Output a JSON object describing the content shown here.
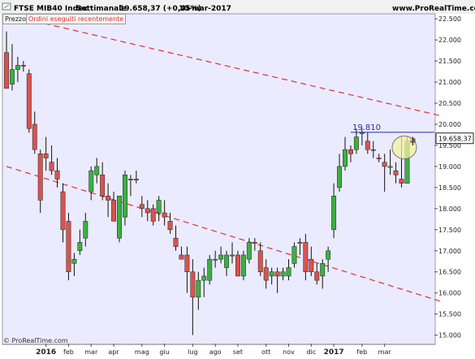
{
  "header": {
    "symbol": "FTSE MIB40 Index",
    "timeframe": "Settimanale",
    "last_change": "19.658,37 (+0,45%)",
    "date": "10-mar-2017",
    "site": "www.ProRealTime.com"
  },
  "tabs": {
    "price": "Prezzo",
    "orders": "Ordini eseguiti recentemente"
  },
  "copyright": "© ProRealTime.com",
  "annotation": {
    "level_label": "19.810",
    "last_price_label": "19.658,37"
  },
  "colors": {
    "up": "#3cb043",
    "down": "#d9534f",
    "trend": "#e0303a",
    "level": "#1f2fa8",
    "plot_bg": "#ebebff",
    "highlight": "#f5f0a0"
  },
  "chart_data": {
    "type": "candlestick",
    "title": "FTSE MIB40 Index",
    "ylim": [
      14800,
      22600
    ],
    "y_ticks": [
      "22.500",
      "22.000",
      "21.500",
      "21.000",
      "20.500",
      "20.000",
      "19.500",
      "19.000",
      "18.500",
      "18.000",
      "17.500",
      "17.000",
      "16.500",
      "16.000",
      "15.500",
      "15.000"
    ],
    "x_labels": [
      {
        "label": "2016",
        "week": 7,
        "year": true
      },
      {
        "label": "feb",
        "week": 11
      },
      {
        "label": "mar",
        "week": 15
      },
      {
        "label": "apr",
        "week": 19
      },
      {
        "label": "mag",
        "week": 24
      },
      {
        "label": "giu",
        "week": 28
      },
      {
        "label": "lug",
        "week": 33
      },
      {
        "label": "ago",
        "week": 37
      },
      {
        "label": "set",
        "week": 41
      },
      {
        "label": "ott",
        "week": 46
      },
      {
        "label": "nov",
        "week": 50
      },
      {
        "label": "dic",
        "week": 54
      },
      {
        "label": "2017",
        "week": 58,
        "year": true
      },
      {
        "label": "feb",
        "week": 63
      },
      {
        "label": "mar",
        "week": 67
      }
    ],
    "candles": [
      [
        21700,
        22200,
        20900,
        20850,
        "down"
      ],
      [
        20950,
        21900,
        20800,
        21300,
        "up"
      ],
      [
        21300,
        21600,
        21000,
        21400,
        "up"
      ],
      [
        21400,
        21500,
        21250,
        21400,
        "down"
      ],
      [
        21200,
        21300,
        19800,
        19900,
        "down"
      ],
      [
        20000,
        20300,
        19300,
        19400,
        "down"
      ],
      [
        19300,
        19400,
        17900,
        18200,
        "down"
      ],
      [
        19300,
        19700,
        18900,
        19200,
        "down"
      ],
      [
        19100,
        19500,
        18800,
        18900,
        "down"
      ],
      [
        18900,
        19200,
        18500,
        18700,
        "down"
      ],
      [
        18400,
        18600,
        17200,
        17500,
        "down"
      ],
      [
        17700,
        17900,
        16300,
        16500,
        "down"
      ],
      [
        16700,
        16950,
        16400,
        16800,
        "up"
      ],
      [
        17000,
        17500,
        16900,
        17200,
        "up"
      ],
      [
        17300,
        17900,
        17100,
        17700,
        "up"
      ],
      [
        18400,
        19000,
        18200,
        18900,
        "up"
      ],
      [
        18800,
        19200,
        18600,
        19000,
        "up"
      ],
      [
        18800,
        19100,
        18200,
        18300,
        "down"
      ],
      [
        18300,
        18600,
        17800,
        18200,
        "down"
      ],
      [
        18200,
        18400,
        17700,
        17700,
        "down"
      ],
      [
        17300,
        18300,
        17200,
        18300,
        "up"
      ],
      [
        17800,
        18900,
        17600,
        18800,
        "up"
      ],
      [
        18700,
        18800,
        18300,
        18700,
        "down"
      ],
      [
        18700,
        18900,
        18600,
        18700,
        "down"
      ],
      [
        18100,
        18300,
        17800,
        18000,
        "down"
      ],
      [
        18000,
        18200,
        17700,
        17900,
        "down"
      ],
      [
        18000,
        18100,
        17600,
        17700,
        "down"
      ],
      [
        17900,
        18300,
        17700,
        18200,
        "up"
      ],
      [
        17900,
        18200,
        17600,
        17800,
        "down"
      ],
      [
        17700,
        17900,
        17400,
        17500,
        "down"
      ],
      [
        17300,
        17600,
        17000,
        17100,
        "down"
      ],
      [
        16900,
        17100,
        16800,
        16800,
        "down"
      ],
      [
        16900,
        17100,
        16000,
        16500,
        "down"
      ],
      [
        16500,
        16800,
        15000,
        15900,
        "down"
      ],
      [
        15900,
        16500,
        15600,
        16300,
        "up"
      ],
      [
        16300,
        16600,
        15900,
        16400,
        "up"
      ],
      [
        16300,
        16900,
        16200,
        16800,
        "up"
      ],
      [
        16800,
        17000,
        16600,
        16800,
        "up"
      ],
      [
        16800,
        17100,
        16700,
        16900,
        "up"
      ],
      [
        16600,
        17000,
        16400,
        16900,
        "up"
      ],
      [
        16900,
        17200,
        16700,
        16900,
        "down"
      ],
      [
        16900,
        17000,
        16400,
        16400,
        "down"
      ],
      [
        16400,
        17000,
        16300,
        16900,
        "up"
      ],
      [
        16800,
        17300,
        16700,
        17200,
        "up"
      ],
      [
        17200,
        17300,
        17000,
        17200,
        "down"
      ],
      [
        17000,
        17200,
        16400,
        16500,
        "down"
      ],
      [
        16600,
        16800,
        16100,
        16300,
        "down"
      ],
      [
        16400,
        16600,
        16200,
        16500,
        "up"
      ],
      [
        16500,
        16600,
        16000,
        16400,
        "down"
      ],
      [
        16400,
        16600,
        16300,
        16500,
        "up"
      ],
      [
        16400,
        16800,
        16300,
        16600,
        "up"
      ],
      [
        16700,
        17200,
        16600,
        17100,
        "up"
      ],
      [
        17200,
        17300,
        16900,
        17200,
        "down"
      ],
      [
        17200,
        17400,
        16300,
        16500,
        "down"
      ],
      [
        16800,
        17100,
        16400,
        16500,
        "down"
      ],
      [
        16500,
        16700,
        16200,
        16300,
        "down"
      ],
      [
        16400,
        16800,
        16100,
        16700,
        "up"
      ],
      [
        16800,
        17100,
        16500,
        17000,
        "up"
      ],
      [
        17500,
        18600,
        17300,
        18300,
        "up"
      ],
      [
        18500,
        19300,
        18400,
        19000,
        "up"
      ],
      [
        19000,
        19700,
        18900,
        19400,
        "up"
      ],
      [
        19400,
        19500,
        19100,
        19300,
        "down"
      ],
      [
        19400,
        19900,
        19300,
        19700,
        "up"
      ],
      [
        19800,
        19900,
        19500,
        19800,
        "up"
      ],
      [
        19600,
        19800,
        19300,
        19400,
        "down"
      ],
      [
        19400,
        19600,
        19200,
        19400,
        "down"
      ],
      [
        19200,
        19300,
        19100,
        19200,
        "down"
      ],
      [
        19100,
        19300,
        18400,
        19000,
        "down"
      ],
      [
        19000,
        19400,
        18800,
        19000,
        "up"
      ],
      [
        18900,
        19100,
        18600,
        18800,
        "down"
      ],
      [
        18700,
        19700,
        18500,
        18600,
        "down"
      ],
      [
        18600,
        19700,
        18600,
        19600,
        "up"
      ],
      [
        19600,
        19700,
        19500,
        19658,
        "down"
      ]
    ],
    "horizontal_level": 19810,
    "last_price": 19658.37,
    "trendlines": [
      {
        "from": [
          0,
          22600
        ],
        "to": [
          77,
          20200
        ]
      },
      {
        "from": [
          0,
          19000
        ],
        "to": [
          77,
          15800
        ]
      }
    ]
  }
}
